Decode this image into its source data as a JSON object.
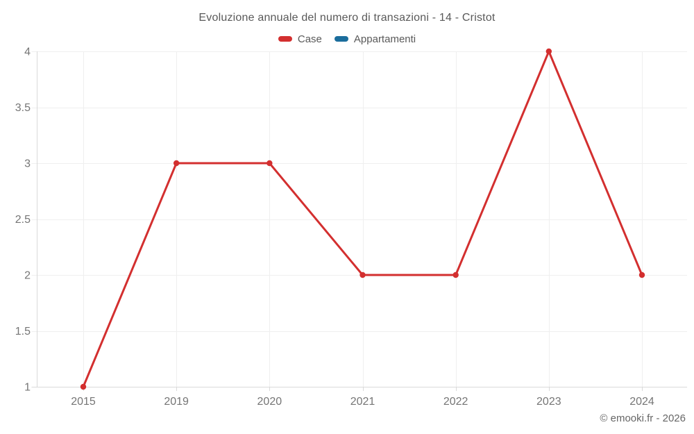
{
  "header": {
    "title": "Evoluzione annuale del numero di transazioni - 14 - Cristot"
  },
  "footer": {
    "copyright": "© emooki.fr - 2026"
  },
  "colors": {
    "case_red": "#d32f2f",
    "appartamenti_blue": "#1b6d9c",
    "gridline": "#efefef",
    "axis_line": "#d9d9d9",
    "axis_label": "#757575",
    "title_text": "#595959"
  },
  "chart_data": {
    "type": "line",
    "title": "Evoluzione annuale del numero di transazioni - 14 - Cristot",
    "categories": [
      "2015",
      "2019",
      "2020",
      "2021",
      "2022",
      "2023",
      "2024"
    ],
    "series": [
      {
        "name": "Case",
        "color": "#d32f2f",
        "values": [
          1,
          3,
          3,
          2,
          2,
          4,
          2
        ]
      },
      {
        "name": "Appartamenti",
        "color": "#1b6d9c",
        "values": []
      }
    ],
    "xlabel": "",
    "ylabel": "",
    "ylim": [
      1,
      4
    ],
    "yticks": [
      1,
      1.5,
      2,
      2.5,
      3,
      3.5,
      4
    ],
    "ytick_labels": [
      "1",
      "1.5",
      "2",
      "2.5",
      "3",
      "3.5",
      "4"
    ],
    "grid": true,
    "legend_position": "top"
  }
}
